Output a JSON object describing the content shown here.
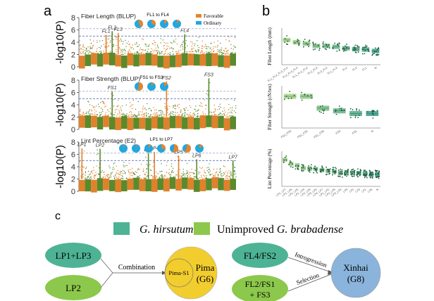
{
  "panel_labels": {
    "a": "a",
    "b": "b",
    "c": "c"
  },
  "chart_data": [
    {
      "type": "scatter",
      "subtype": "manhattan",
      "title": "Fiber Length (BLUP)",
      "ylabel": "-log10(P)",
      "ylim": [
        0,
        8
      ],
      "yticks": [
        0,
        2,
        4,
        6,
        8
      ],
      "thresholds": [
        5.0,
        6.2
      ],
      "pie_caption": "FL1 to FL4",
      "pies_favorable_fraction": [
        0.4,
        0.3,
        0.15,
        0.1
      ],
      "peaks": [
        {
          "label": "FL1",
          "chrom": 5,
          "value": 5.2
        },
        {
          "label": "FL2",
          "chrom": 6,
          "value": 5.8
        },
        {
          "label": "FL3",
          "chrom": 7,
          "value": 5.5
        },
        {
          "label": "FL4",
          "chrom": 18,
          "value": 5.3
        }
      ],
      "legend": [
        {
          "label": "Favorable",
          "color": "#e8832a"
        },
        {
          "label": "Ordinary",
          "color": "#22a7de"
        }
      ]
    },
    {
      "type": "scatter",
      "subtype": "manhattan",
      "title": "Fiber Strength (BLUP)",
      "ylabel": "-log10(P)",
      "ylim": [
        0,
        8
      ],
      "yticks": [
        0,
        2,
        4,
        6,
        8
      ],
      "thresholds": [
        5.0,
        6.2
      ],
      "pie_caption": "FS1 to FS3",
      "pies_favorable_fraction": [
        0.55,
        0.1,
        0.15
      ],
      "peaks": [
        {
          "label": "FS1",
          "chrom": 6,
          "value": 6.2
        },
        {
          "label": "FS2",
          "chrom": 15,
          "value": 7.8
        },
        {
          "label": "FS3",
          "chrom": 22,
          "value": 8.3
        }
      ]
    },
    {
      "type": "scatter",
      "subtype": "manhattan",
      "title": "Lint Percentage (E2)",
      "ylabel": "-log10(P)",
      "ylim": [
        0,
        8
      ],
      "yticks": [
        0,
        2,
        4,
        6,
        8
      ],
      "thresholds": [
        5.0,
        6.2
      ],
      "pie_caption": "LP1 to LP7",
      "pies_favorable_fraction": [
        0.05,
        0.05,
        0.1,
        0.3,
        0.55,
        0.6,
        0.15
      ],
      "peaks": [
        {
          "label": "LP1",
          "chrom": 1,
          "value": 7.0
        },
        {
          "label": "LP2",
          "chrom": 4,
          "value": 6.9
        },
        {
          "label": "LP3",
          "chrom": 12,
          "value": 6.2
        },
        {
          "label": "LP4",
          "chrom": 13,
          "value": 6.4
        },
        {
          "label": "LP5",
          "chrom": 17,
          "value": 5.8
        },
        {
          "label": "LP6",
          "chrom": 20,
          "value": 5.2
        },
        {
          "label": "LP7",
          "chrom": 26,
          "value": 5.0
        }
      ]
    },
    {
      "type": "box",
      "ylabel": "Fiber Length (mm)",
      "categories": [
        "FL1_FL2_FL3_FL4",
        "FL2_FL3_FL4",
        "FL1_FL2_FL3",
        "FL2_FL3",
        "FL3_FL4",
        "FL1_FL3",
        "FL2",
        "FL3",
        "FL1",
        "N"
      ],
      "medians": [
        38.5,
        37.3,
        36.5,
        35.2,
        35.3,
        34.8,
        34.0,
        33.5,
        33.3,
        32.5
      ],
      "ylim": [
        25,
        45
      ]
    },
    {
      "type": "box",
      "ylabel": "Fiber Strength (cN/tex)",
      "categories": [
        "FS2_FS3",
        "FS1_FS2",
        "FS1_FS3",
        "FS3",
        "FS1",
        "N"
      ],
      "medians": [
        34.0,
        34.0,
        29.5,
        28.5,
        27.5,
        27.5
      ],
      "ylim": [
        22,
        38
      ]
    },
    {
      "type": "box",
      "ylabel": "Lint Percentage (%)",
      "categories": [
        "LP1..LP7",
        "LP1..LP6",
        "LP1..LP5",
        "LP1..LP4",
        "LP2..LP5",
        "LP3..LP6",
        "LP4..LP7",
        "LP1_LP2",
        "LP2_LP5",
        "LP3_LP4",
        "LP5",
        "LP2",
        "LP3",
        "LP1",
        "LP6",
        "N"
      ],
      "medians": [
        44,
        41,
        40,
        38,
        37.5,
        37.5,
        36.5,
        36,
        35.5,
        34.5,
        35,
        34.5,
        34.5,
        34,
        33.5,
        33.5
      ],
      "ylim": [
        25,
        50
      ]
    }
  ],
  "diagram": {
    "legend": [
      {
        "label": "G. hirsutum",
        "color": "#4db394"
      },
      {
        "label_plain": "Unimproved ",
        "label_italic": "G. brabadense",
        "color": "#8cc84b"
      }
    ],
    "left": {
      "sources": [
        "LP1+LP3",
        "LP2"
      ],
      "arrow_label": "Combination",
      "inner": "Pima-S1",
      "target_line1": "Pima",
      "target_line2": "(G6)"
    },
    "right": {
      "sources": [
        "FL4/FS2",
        "FL2/FS1",
        "+ FS3"
      ],
      "arrow_labels": [
        "Introgression",
        "Selection"
      ],
      "target_line1": "Xinhai",
      "target_line2": "(G8)"
    }
  }
}
